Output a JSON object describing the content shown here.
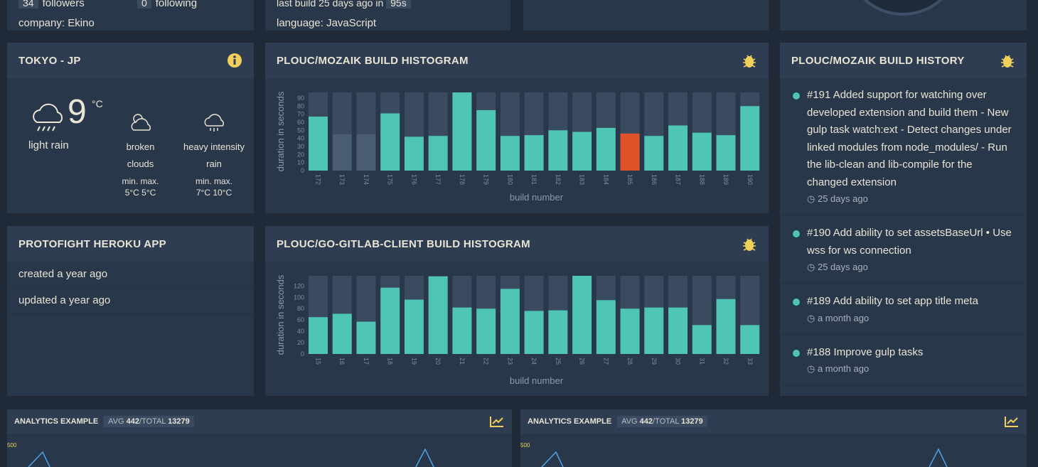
{
  "github_user": {
    "followers_count": "34",
    "followers_label": "followers",
    "following_count": "0",
    "following_label": "following",
    "company": "company: Ekino"
  },
  "github_repo": {
    "last_build": "last build 25 days ago",
    "in_label": "in",
    "duration": "95s",
    "language": "language: JavaScript"
  },
  "weather": {
    "title": "TOKYO - JP",
    "temperature": "9",
    "unit": "°C",
    "description": "light rain",
    "forecast": [
      {
        "description": "broken clouds",
        "min_label": "min.",
        "min": "5°C",
        "max_label": "max.",
        "max": "5°C"
      },
      {
        "description": "heavy intensity rain",
        "min_label": "min.",
        "min": "7°C",
        "max_label": "max.",
        "max": "10°C"
      }
    ]
  },
  "heroku": {
    "title": "PROTOFIGHT HEROKU APP",
    "items": [
      "created a year ago",
      "updated a year ago"
    ]
  },
  "history": {
    "title": "PLOUC/MOZAIK BUILD HISTORY",
    "items": [
      {
        "text": "#191 Added support for watching over developed extension and build them - New gulp task watch:ext - Detect changes under linked modules from node_modules/ - Run the lib-clean and lib-compile for the changed extension",
        "time": "25 days ago"
      },
      {
        "text": "#190 Add ability to set assetsBaseUrl • Use wss for ws connection",
        "time": "25 days ago"
      },
      {
        "text": "#189 Add ability to set app title meta",
        "time": "a month ago"
      },
      {
        "text": "#188 Improve gulp tasks",
        "time": "a month ago"
      }
    ]
  },
  "analytics": [
    {
      "title": "ANALYTICS EXAMPLE",
      "avg_label": "AVG",
      "avg": "442",
      "total_label": "/TOTAL",
      "total": "13279",
      "axis_label": "500"
    },
    {
      "title": "ANALYTICS EXAMPLE",
      "avg_label": "AVG",
      "avg": "442",
      "total_label": "/TOTAL",
      "total": "13279",
      "axis_label": "500"
    }
  ],
  "chart_data": [
    {
      "type": "bar",
      "title": "PLOUC/MOZAIK BUILD HISTOGRAM",
      "x_label": "build number",
      "y_label": "duration in seconds",
      "categories": [
        "172",
        "173",
        "174",
        "175",
        "176",
        "177",
        "178",
        "179",
        "180",
        "181",
        "182",
        "183",
        "184",
        "185",
        "186",
        "187",
        "188",
        "189",
        "190"
      ],
      "values": [
        67,
        45,
        45,
        71,
        42,
        43,
        97,
        75,
        43,
        44,
        50,
        48,
        53,
        46,
        43,
        56,
        47,
        44,
        80
      ],
      "colors": [
        "#4ec5b5",
        "#4a5b74",
        "#4a5b74",
        "#4ec5b5",
        "#4ec5b5",
        "#4ec5b5",
        "#4ec5b5",
        "#4ec5b5",
        "#4ec5b5",
        "#4ec5b5",
        "#4ec5b5",
        "#4ec5b5",
        "#4ec5b5",
        "#e0532a",
        "#4ec5b5",
        "#4ec5b5",
        "#4ec5b5",
        "#4ec5b5",
        "#4ec5b5"
      ],
      "ylim": [
        0,
        97
      ],
      "yticks": [
        0,
        10,
        20,
        30,
        40,
        50,
        60,
        70,
        80,
        90
      ]
    },
    {
      "type": "bar",
      "title": "PLOUC/GO-GITLAB-CLIENT BUILD HISTOGRAM",
      "x_label": "build number",
      "y_label": "duration in seconds",
      "categories": [
        "15",
        "16",
        "17",
        "18",
        "19",
        "20",
        "21",
        "22",
        "23",
        "24",
        "25",
        "26",
        "27",
        "28",
        "29",
        "30",
        "31",
        "32",
        "33"
      ],
      "values": [
        65,
        71,
        57,
        117,
        96,
        137,
        82,
        80,
        115,
        76,
        77,
        138,
        95,
        80,
        82,
        82,
        51,
        97,
        51
      ],
      "colors": [
        "#4ec5b5",
        "#4ec5b5",
        "#4ec5b5",
        "#4ec5b5",
        "#4ec5b5",
        "#4ec5b5",
        "#4ec5b5",
        "#4ec5b5",
        "#4ec5b5",
        "#4ec5b5",
        "#4ec5b5",
        "#4ec5b5",
        "#4ec5b5",
        "#4ec5b5",
        "#4ec5b5",
        "#4ec5b5",
        "#4ec5b5",
        "#4ec5b5",
        "#4ec5b5"
      ],
      "ylim": [
        0,
        138
      ],
      "yticks": [
        0,
        20,
        40,
        60,
        80,
        100,
        120
      ]
    }
  ]
}
